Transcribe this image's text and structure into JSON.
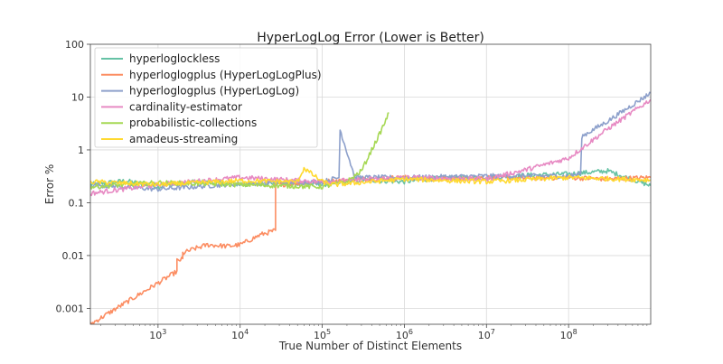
{
  "chart_data": {
    "type": "line",
    "title": "HyperLogLog Error (Lower is Better)",
    "xlabel": "True Number of Distinct Elements",
    "ylabel": "Error %",
    "x_scale": "log",
    "y_scale": "log",
    "xlim": [
      150,
      1000000000
    ],
    "ylim": [
      0.0005,
      100
    ],
    "grid": true,
    "legend_position": "top-left",
    "x_ticks": [
      {
        "value": 1000,
        "base": "10",
        "exp": "3"
      },
      {
        "value": 10000,
        "base": "10",
        "exp": "4"
      },
      {
        "value": 100000,
        "base": "10",
        "exp": "5"
      },
      {
        "value": 1000000,
        "base": "10",
        "exp": "6"
      },
      {
        "value": 10000000,
        "base": "10",
        "exp": "7"
      },
      {
        "value": 100000000,
        "base": "10",
        "exp": "8"
      }
    ],
    "y_ticks": [
      {
        "value": 0.001,
        "label": "0.001"
      },
      {
        "value": 0.01,
        "label": "0.01"
      },
      {
        "value": 0.1,
        "label": "0.1"
      },
      {
        "value": 1,
        "label": "1"
      },
      {
        "value": 10,
        "label": "10"
      },
      {
        "value": 100,
        "label": "100"
      }
    ],
    "series": [
      {
        "name": "hyperloglockless",
        "color": "#66c2a5",
        "x": [
          150,
          400,
          1000,
          3000,
          10000,
          30000,
          100000,
          300000,
          1000000,
          3000000,
          10000000,
          30000000,
          100000000,
          300000000,
          1000000000
        ],
        "y": [
          0.22,
          0.26,
          0.2,
          0.25,
          0.22,
          0.24,
          0.22,
          0.27,
          0.25,
          0.3,
          0.3,
          0.33,
          0.35,
          0.4,
          0.21
        ]
      },
      {
        "name": "hyperloglogplus (HyperLogLogPlus)",
        "color": "#fc8d62",
        "x": [
          150,
          1700,
          1700,
          2000,
          2000,
          2600,
          4000,
          7000,
          10000,
          18000,
          27000,
          27000,
          30000,
          100000,
          300000,
          1000000,
          3000000,
          10000000,
          30000000,
          100000000,
          300000000,
          1000000000
        ],
        "y": [
          0.0005,
          0.005,
          0.008,
          0.0085,
          0.011,
          0.013,
          0.016,
          0.015,
          0.016,
          0.025,
          0.03,
          0.25,
          0.22,
          0.25,
          0.28,
          0.3,
          0.28,
          0.3,
          0.29,
          0.3,
          0.28,
          0.3
        ]
      },
      {
        "name": "hyperloglogplus (HyperLogLog)",
        "color": "#8da0cb",
        "x": [
          150,
          1000,
          10000,
          100000,
          160000,
          165000,
          250000,
          1000000,
          10000000,
          100000000,
          140000000,
          145000000,
          300000000,
          1000000000
        ],
        "y": [
          0.22,
          0.18,
          0.23,
          0.25,
          0.3,
          2.4,
          0.3,
          0.3,
          0.32,
          0.32,
          0.35,
          1.8,
          3.5,
          12
        ]
      },
      {
        "name": "cardinality-estimator",
        "color": "#e78ac3",
        "x": [
          150,
          1000,
          10000,
          100000,
          1000000,
          10000000,
          30000000,
          100000000,
          300000000,
          1000000000
        ],
        "y": [
          0.15,
          0.22,
          0.3,
          0.25,
          0.3,
          0.28,
          0.42,
          0.7,
          2.5,
          9
        ]
      },
      {
        "name": "probabilistic-collections",
        "color": "#a6d854",
        "x": [
          150,
          1000,
          10000,
          100000,
          200000,
          300000,
          400000,
          500000,
          650000
        ],
        "y": [
          0.2,
          0.24,
          0.22,
          0.2,
          0.25,
          0.4,
          1.0,
          2.0,
          5.0
        ]
      },
      {
        "name": "amadeus-streaming",
        "color": "#ffd92f",
        "x": [
          150,
          1000,
          10000,
          50000,
          60000,
          100000,
          140000,
          1000000,
          10000000,
          100000000,
          1000000000
        ],
        "y": [
          0.25,
          0.22,
          0.26,
          0.25,
          0.45,
          0.25,
          0.22,
          0.28,
          0.25,
          0.3,
          0.27
        ]
      }
    ]
  }
}
